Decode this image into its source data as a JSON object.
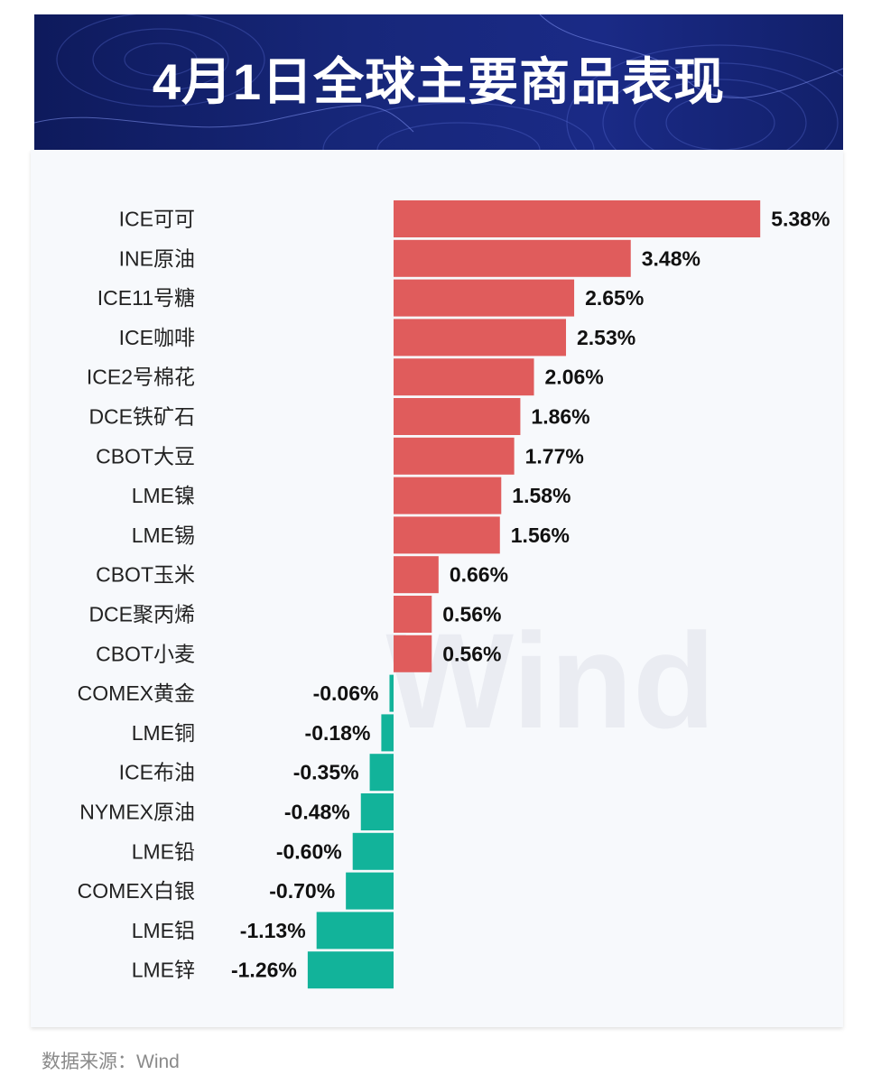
{
  "title": "4月1日全球主要商品表现",
  "source": "数据来源：Wind",
  "watermark": "Wind",
  "colors": {
    "positive": "#e05c5c",
    "negative": "#12b39a",
    "banner": "#17277a"
  },
  "chart_data": {
    "type": "bar",
    "orientation": "horizontal",
    "unit": "%",
    "categories": [
      "ICE可可",
      "INE原油",
      "ICE11号糖",
      "ICE咖啡",
      "ICE2号棉花",
      "DCE铁矿石",
      "CBOT大豆",
      "LME镍",
      "LME锡",
      "CBOT玉米",
      "DCE聚丙烯",
      "CBOT小麦",
      "COMEX黄金",
      "LME铜",
      "ICE布油",
      "NYMEX原油",
      "LME铅",
      "COMEX白银",
      "LME铝",
      "LME锌"
    ],
    "values": [
      5.38,
      3.48,
      2.65,
      2.53,
      2.06,
      1.86,
      1.77,
      1.58,
      1.56,
      0.66,
      0.56,
      0.56,
      -0.06,
      -0.18,
      -0.35,
      -0.48,
      -0.6,
      -0.7,
      -1.13,
      -1.26
    ],
    "labels": [
      "5.38%",
      "3.48%",
      "2.65%",
      "2.53%",
      "2.06%",
      "1.86%",
      "1.77%",
      "1.58%",
      "1.56%",
      "0.66%",
      "0.56%",
      "0.56%",
      "-0.06%",
      "-0.18%",
      "-0.35%",
      "-0.48%",
      "-0.60%",
      "-0.70%",
      "-1.13%",
      "-1.26%"
    ],
    "xlabel": "",
    "ylabel": "",
    "grid": false,
    "legend": "none"
  }
}
